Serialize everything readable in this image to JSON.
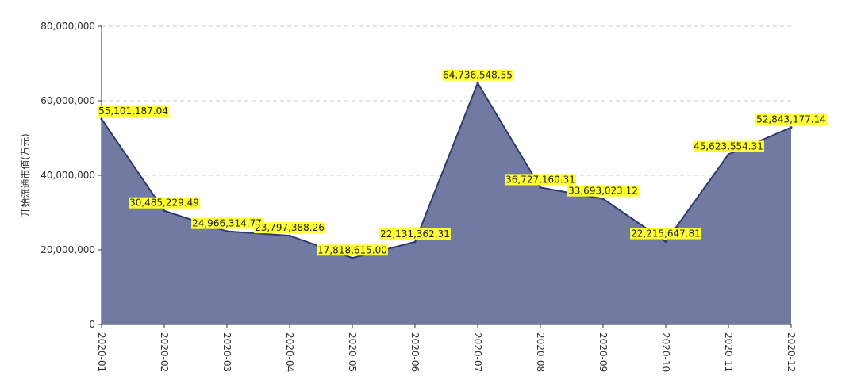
{
  "chart_data": {
    "type": "area",
    "ylabel": "开始流通市值(万元)",
    "xlabel": "",
    "categories": [
      "2020-01",
      "2020-02",
      "2020-03",
      "2020-04",
      "2020-05",
      "2020-06",
      "2020-07",
      "2020-08",
      "2020-09",
      "2020-10",
      "2020-11",
      "2020-12"
    ],
    "values": [
      55101187.04,
      30485229.49,
      24966314.77,
      23797388.26,
      17818615.0,
      22131362.31,
      64736548.55,
      36727160.31,
      33693023.12,
      22215647.81,
      45623554.31,
      52843177.14
    ],
    "data_labels": [
      "55,101,187.04",
      "30,485,229.49",
      "24,966,314.77",
      "23,797,388.26",
      "17,818,615.00",
      "22,131,362.31",
      "64,736,548.55",
      "36,727,160.31",
      "33,693,023.12",
      "22,215,647.81",
      "45,623,554.31",
      "52,843,177.14"
    ],
    "ylim": [
      0,
      80000000
    ],
    "yticks": [
      0,
      20000000,
      40000000,
      60000000,
      80000000
    ],
    "ytick_labels": [
      "0",
      "20,000,000",
      "40,000,000",
      "60,000,000",
      "80,000,000"
    ],
    "grid": "horizontal dashed",
    "legend": "none",
    "colors": {
      "area_fill": "#717aa1",
      "line": "#2f3a6e",
      "label_bg": "#ffff33",
      "grid": "#cccccc",
      "axis": "#333333"
    }
  }
}
